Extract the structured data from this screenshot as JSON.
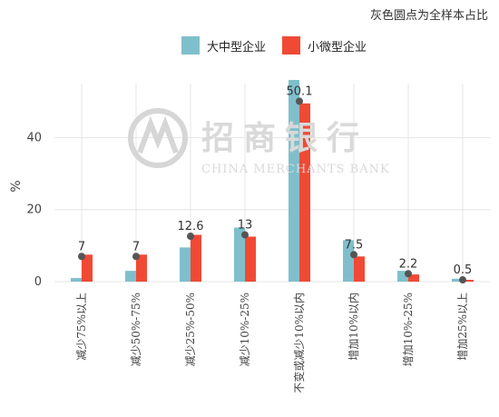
{
  "note": "灰色圆点为全样本占比",
  "colors": {
    "large_medium": "#7fbfcc",
    "small_micro": "#f04a35",
    "dot": "#555555",
    "grid": "#e6e6e6",
    "axis_text": "#444444"
  },
  "watermark": {
    "name": "招商银行",
    "english": "CHINA MERCHANTS BANK"
  },
  "chart_data": {
    "type": "bar",
    "ylabel": "%",
    "ylim": [
      0,
      55
    ],
    "yticks": [
      0,
      20,
      40
    ],
    "grid": true,
    "legend_position": "top",
    "categories": [
      "减少75%以上",
      "减少50%-75%",
      "减少25%-50%",
      "减少10%-25%",
      "不变或减少10%以内",
      "增加10%以内",
      "增加10%-25%",
      "增加25%以上"
    ],
    "series": [
      {
        "name": "大中型企业",
        "values": [
          1,
          3,
          9.5,
          15,
          56,
          11.5,
          3,
          0.8
        ]
      },
      {
        "name": "小微型企业",
        "values": [
          7.5,
          7.5,
          13,
          12.5,
          49.5,
          7,
          2,
          0.5
        ]
      }
    ],
    "overall_dots": [
      7,
      7,
      12.6,
      13,
      50.1,
      7.5,
      2.2,
      0.5
    ],
    "dot_labels": [
      "7",
      "7",
      "12.6",
      "13",
      "50.1",
      "7.5",
      "2.2",
      "0.5"
    ]
  }
}
